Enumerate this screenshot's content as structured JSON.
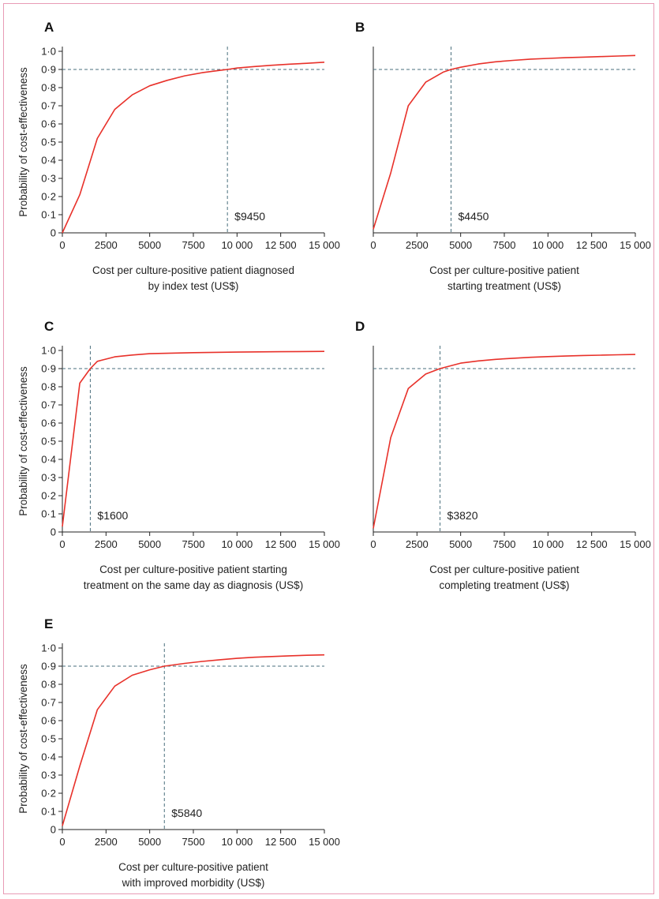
{
  "colors": {
    "curve": "#e8312a",
    "reference": "#4a6f7d",
    "axis": "#222222",
    "frame": "#e89bb6"
  },
  "chart_data": [
    {
      "type": "line",
      "panel_label": "A",
      "ylabel": "Probability of cost-effectiveness",
      "xlabel_lines": [
        "Cost per culture-positive patient diagnosed",
        "by index test (US$)"
      ],
      "xlim": [
        0,
        15000
      ],
      "ylim": [
        0,
        1
      ],
      "x_ticks": [
        0,
        2500,
        5000,
        7500,
        10000,
        12500,
        15000
      ],
      "x_tick_labels": [
        "0",
        "2500",
        "5000",
        "7500",
        "10 000",
        "12 500",
        "15 000"
      ],
      "y_ticks": [
        0,
        0.1,
        0.2,
        0.3,
        0.4,
        0.5,
        0.6,
        0.7,
        0.8,
        0.9,
        1.0
      ],
      "y_tick_labels": [
        "0",
        "0·1",
        "0·2",
        "0·3",
        "0·4",
        "0·5",
        "0·6",
        "0·7",
        "0·8",
        "0·9",
        "1·0"
      ],
      "threshold_probability": 0.9,
      "threshold_cost": 9450,
      "annotation": "$9450",
      "grid": false,
      "x": [
        0,
        1000,
        2000,
        3000,
        4000,
        5000,
        6000,
        7000,
        8000,
        9000,
        9450,
        10000,
        11000,
        12000,
        13000,
        14000,
        15000
      ],
      "y": [
        0.0,
        0.21,
        0.52,
        0.68,
        0.76,
        0.81,
        0.84,
        0.865,
        0.882,
        0.895,
        0.9,
        0.908,
        0.916,
        0.923,
        0.929,
        0.934,
        0.94
      ]
    },
    {
      "type": "line",
      "panel_label": "B",
      "ylabel": "",
      "xlabel_lines": [
        "Cost per culture-positive patient",
        "starting treatment (US$)"
      ],
      "xlim": [
        0,
        15000
      ],
      "ylim": [
        0,
        1
      ],
      "x_ticks": [
        0,
        2500,
        5000,
        7500,
        10000,
        12500,
        15000
      ],
      "x_tick_labels": [
        "0",
        "2500",
        "5000",
        "7500",
        "10 000",
        "12 500",
        "15 000"
      ],
      "y_ticks": [],
      "y_tick_labels": [],
      "threshold_probability": 0.9,
      "threshold_cost": 4450,
      "annotation": "$4450",
      "grid": false,
      "x": [
        0,
        1000,
        2000,
        3000,
        4000,
        4450,
        5000,
        6000,
        7000,
        8000,
        9000,
        10000,
        11000,
        12000,
        13000,
        14000,
        15000
      ],
      "y": [
        0.02,
        0.33,
        0.7,
        0.83,
        0.885,
        0.9,
        0.912,
        0.93,
        0.942,
        0.95,
        0.957,
        0.961,
        0.965,
        0.968,
        0.971,
        0.974,
        0.977
      ]
    },
    {
      "type": "line",
      "panel_label": "C",
      "ylabel": "Probability of cost-effectiveness",
      "xlabel_lines": [
        "Cost per culture-positive patient starting",
        "treatment on the same day as diagnosis (US$)"
      ],
      "xlim": [
        0,
        15000
      ],
      "ylim": [
        0,
        1
      ],
      "x_ticks": [
        0,
        2500,
        5000,
        7500,
        10000,
        12500,
        15000
      ],
      "x_tick_labels": [
        "0",
        "2500",
        "5000",
        "7500",
        "10 000",
        "12 500",
        "15 000"
      ],
      "y_ticks": [
        0,
        0.1,
        0.2,
        0.3,
        0.4,
        0.5,
        0.6,
        0.7,
        0.8,
        0.9,
        1.0
      ],
      "y_tick_labels": [
        "0",
        "0·1",
        "0·2",
        "0·3",
        "0·4",
        "0·5",
        "0·6",
        "0·7",
        "0·8",
        "0·9",
        "1·0"
      ],
      "threshold_probability": 0.9,
      "threshold_cost": 1600,
      "annotation": "$1600",
      "grid": false,
      "x": [
        0,
        1000,
        1600,
        2000,
        3000,
        4000,
        5000,
        7500,
        10000,
        12500,
        15000
      ],
      "y": [
        0.03,
        0.82,
        0.9,
        0.94,
        0.965,
        0.975,
        0.982,
        0.988,
        0.991,
        0.993,
        0.995
      ]
    },
    {
      "type": "line",
      "panel_label": "D",
      "ylabel": "",
      "xlabel_lines": [
        "Cost per culture-positive patient",
        "completing treatment (US$)"
      ],
      "xlim": [
        0,
        15000
      ],
      "ylim": [
        0,
        1
      ],
      "x_ticks": [
        0,
        2500,
        5000,
        7500,
        10000,
        12500,
        15000
      ],
      "x_tick_labels": [
        "0",
        "2500",
        "5000",
        "7500",
        "10 000",
        "12 500",
        "15 000"
      ],
      "y_ticks": [],
      "y_tick_labels": [],
      "threshold_probability": 0.9,
      "threshold_cost": 3820,
      "annotation": "$3820",
      "grid": false,
      "x": [
        0,
        1000,
        2000,
        3000,
        3820,
        5000,
        6000,
        7000,
        8000,
        9000,
        10000,
        11000,
        12000,
        13000,
        14000,
        15000
      ],
      "y": [
        0.02,
        0.52,
        0.79,
        0.87,
        0.9,
        0.93,
        0.942,
        0.951,
        0.957,
        0.962,
        0.966,
        0.969,
        0.972,
        0.974,
        0.976,
        0.978
      ]
    },
    {
      "type": "line",
      "panel_label": "E",
      "ylabel": "Probability of cost-effectiveness",
      "xlabel_lines": [
        "Cost per culture-positive patient",
        "with improved morbidity (US$)"
      ],
      "xlim": [
        0,
        15000
      ],
      "ylim": [
        0,
        1
      ],
      "x_ticks": [
        0,
        2500,
        5000,
        7500,
        10000,
        12500,
        15000
      ],
      "x_tick_labels": [
        "0",
        "2500",
        "5000",
        "7500",
        "10 000",
        "12 500",
        "15 000"
      ],
      "y_ticks": [
        0,
        0.1,
        0.2,
        0.3,
        0.4,
        0.5,
        0.6,
        0.7,
        0.8,
        0.9,
        1.0
      ],
      "y_tick_labels": [
        "0",
        "0·1",
        "0·2",
        "0·3",
        "0·4",
        "0·5",
        "0·6",
        "0·7",
        "0·8",
        "0·9",
        "1·0"
      ],
      "threshold_probability": 0.9,
      "threshold_cost": 5840,
      "annotation": "$5840",
      "grid": false,
      "x": [
        0,
        1000,
        2000,
        3000,
        4000,
        5000,
        5840,
        7000,
        8000,
        9000,
        10000,
        11000,
        12000,
        13000,
        14000,
        15000
      ],
      "y": [
        0.02,
        0.35,
        0.66,
        0.79,
        0.85,
        0.88,
        0.9,
        0.915,
        0.926,
        0.935,
        0.943,
        0.949,
        0.953,
        0.957,
        0.96,
        0.962
      ]
    }
  ]
}
